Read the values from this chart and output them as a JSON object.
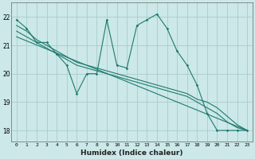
{
  "xlabel": "Humidex (Indice chaleur)",
  "bg_color": "#cce8e8",
  "grid_color": "#aacccc",
  "line_color": "#1e7a6e",
  "xlim": [
    -0.5,
    23.5
  ],
  "ylim": [
    17.6,
    22.5
  ],
  "yticks": [
    18,
    19,
    20,
    21,
    22
  ],
  "xticks": [
    0,
    1,
    2,
    3,
    4,
    5,
    6,
    7,
    8,
    9,
    10,
    11,
    12,
    13,
    14,
    15,
    16,
    17,
    18,
    19,
    20,
    21,
    22,
    23
  ],
  "line1_x": [
    0,
    1,
    2,
    3,
    4,
    5,
    6,
    7,
    8,
    9,
    10,
    11,
    12,
    13,
    14,
    15,
    16,
    17,
    18,
    19,
    20,
    21,
    22,
    23
  ],
  "line1_y": [
    21.9,
    21.6,
    21.1,
    21.1,
    20.7,
    20.3,
    19.3,
    20.0,
    20.0,
    21.9,
    20.3,
    20.2,
    21.7,
    21.9,
    22.1,
    21.6,
    20.8,
    20.3,
    19.6,
    18.6,
    18.0,
    18.0,
    18.0,
    18.0
  ],
  "line2_x": [
    0,
    1,
    2,
    3,
    4,
    5,
    6,
    7,
    8,
    9,
    10,
    11,
    12,
    13,
    14,
    15,
    16,
    17,
    18,
    19,
    20,
    21,
    22,
    23
  ],
  "line2_y": [
    21.7,
    21.5,
    21.2,
    21.0,
    20.8,
    20.6,
    20.4,
    20.3,
    20.2,
    20.1,
    20.0,
    19.9,
    19.8,
    19.7,
    19.6,
    19.5,
    19.4,
    19.3,
    19.1,
    19.0,
    18.8,
    18.5,
    18.2,
    18.0
  ],
  "line3_x": [
    0,
    1,
    2,
    3,
    4,
    5,
    6,
    7,
    8,
    9,
    10,
    11,
    12,
    13,
    14,
    15,
    16,
    17,
    18,
    19,
    20,
    21,
    22,
    23
  ],
  "line3_y": [
    21.5,
    21.3,
    21.1,
    20.9,
    20.7,
    20.5,
    20.3,
    20.2,
    20.1,
    20.0,
    19.9,
    19.8,
    19.7,
    19.6,
    19.5,
    19.4,
    19.3,
    19.2,
    19.0,
    18.8,
    18.6,
    18.3,
    18.1,
    18.0
  ],
  "line4_x": [
    0,
    23
  ],
  "line4_y": [
    21.3,
    18.0
  ]
}
